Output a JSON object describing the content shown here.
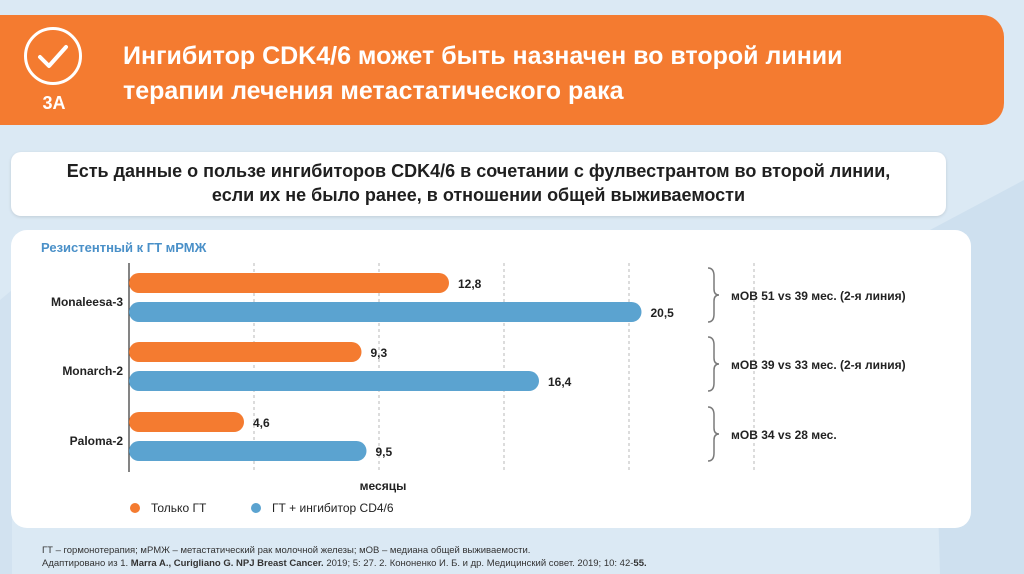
{
  "header": {
    "badge": "3A",
    "title_line1": "Ингибитор CDK4/6 может быть назначен во второй линии",
    "title_line2": "терапии лечения метастатического рака"
  },
  "subtitle": {
    "line1": "Есть данные о пользе ингибиторов CDK4/6 в сочетании с фулвестрантом во второй линии,",
    "line2": "если их не было ранее, в отношении общей выживаемости"
  },
  "colors": {
    "orange": "#f47b30",
    "blue": "#5ba3d0",
    "title_blue": "#4a90c8"
  },
  "chart_data": {
    "type": "bar",
    "orientation": "horizontal",
    "title": "Резистентный к ГТ мРМЖ",
    "xlabel": "месяцы",
    "xlim": [
      0,
      25
    ],
    "gridlines": [
      5,
      10,
      15,
      20,
      25
    ],
    "grid": true,
    "categories": [
      "Monaleesa-3",
      "Monarch-2",
      "Paloma-2"
    ],
    "series": [
      {
        "name": "Только ГТ",
        "color": "#f47b30",
        "values": [
          12.8,
          9.3,
          4.6
        ],
        "labels": [
          "12,8",
          "9,3",
          "4,6"
        ]
      },
      {
        "name": "ГТ + ингибитор CD4/6",
        "color": "#5ba3d0",
        "values": [
          20.5,
          16.4,
          9.5
        ],
        "labels": [
          "20,5",
          "16,4",
          "9,5"
        ]
      }
    ],
    "annotations": [
      "мОВ 51 vs 39 мес. (2-я линия)",
      "мОВ 39 vs 33 мес. (2-я линия)",
      "мОВ 34 vs 28 мес."
    ],
    "legend": "bottom-left"
  },
  "footnote": {
    "line1": "ГТ – гормонотерапия; мРМЖ – метастатический рак молочной железы; мОВ – медиана общей выживаемости.",
    "line2_pre": "Адаптировано из 1. ",
    "line2_auth": "Marra A., Curigliano G. NPJ Breast Cancer.",
    "line2_post": " 2019; 5: 27. 2. Кононенко И. Б. и др. Медицинский совет. 2019; 10: 42-",
    "line2_tail": "55."
  }
}
